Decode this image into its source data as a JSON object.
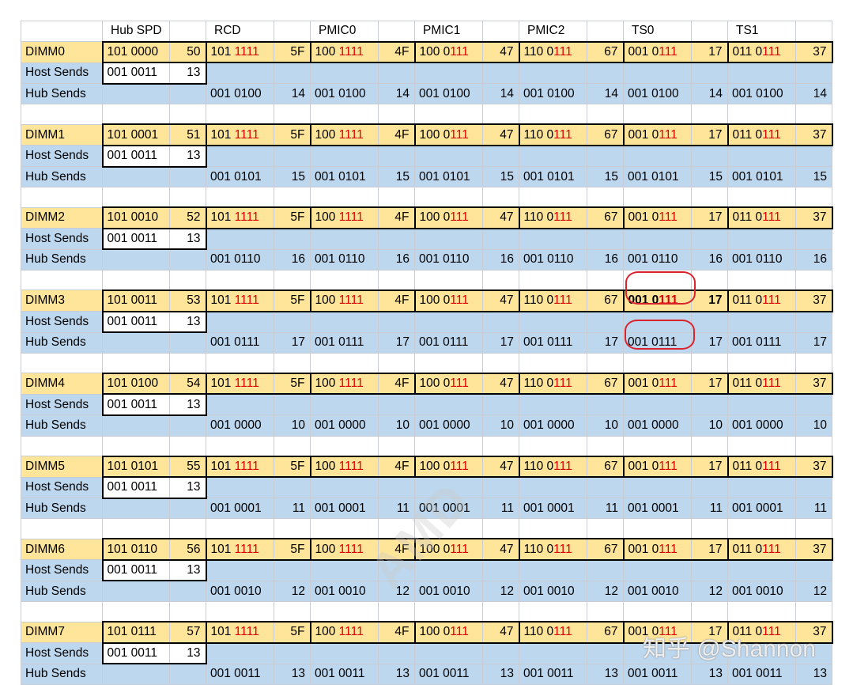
{
  "header": [
    "",
    "Hub SPD",
    "",
    "RCD",
    "",
    "PMIC0",
    "",
    "PMIC1",
    "",
    "PMIC2",
    "",
    "TS0",
    "",
    "TS1",
    ""
  ],
  "blocks": [
    {
      "dimm": [
        "DIMM0",
        "101 0000",
        "50",
        [
          "101 ",
          "1111"
        ],
        "5F",
        [
          "100 ",
          "1111"
        ],
        "4F",
        [
          "100 0",
          "111"
        ],
        "47",
        [
          "110 0",
          "111"
        ],
        "67",
        [
          "001 0",
          "111"
        ],
        "17",
        [
          "011 0",
          "111"
        ],
        "37"
      ],
      "host": [
        "Host Sends",
        "001 0011",
        "13"
      ],
      "hub": [
        "Hub Sends",
        "001 0100",
        "14",
        "001 0100",
        "14",
        "001 0100",
        "14",
        "001 0100",
        "14",
        "001 0100",
        "14",
        "001 0100",
        "14"
      ]
    },
    {
      "dimm": [
        "DIMM1",
        "101 0001",
        "51",
        [
          "101 ",
          "1111"
        ],
        "5F",
        [
          "100 ",
          "1111"
        ],
        "4F",
        [
          "100 0",
          "111"
        ],
        "47",
        [
          "110 0",
          "111"
        ],
        "67",
        [
          "001 0",
          "111"
        ],
        "17",
        [
          "011 0",
          "111"
        ],
        "37"
      ],
      "host": [
        "Host Sends",
        "001 0011",
        "13"
      ],
      "hub": [
        "Hub Sends",
        "001 0101",
        "15",
        "001 0101",
        "15",
        "001 0101",
        "15",
        "001 0101",
        "15",
        "001 0101",
        "15",
        "001 0101",
        "15"
      ]
    },
    {
      "dimm": [
        "DIMM2",
        "101 0010",
        "52",
        [
          "101 ",
          "1111"
        ],
        "5F",
        [
          "100 ",
          "1111"
        ],
        "4F",
        [
          "100 0",
          "111"
        ],
        "47",
        [
          "110 0",
          "111"
        ],
        "67",
        [
          "001 0",
          "111"
        ],
        "17",
        [
          "011 0",
          "111"
        ],
        "37"
      ],
      "host": [
        "Host Sends",
        "001 0011",
        "13"
      ],
      "hub": [
        "Hub Sends",
        "001 0110",
        "16",
        "001 0110",
        "16",
        "001 0110",
        "16",
        "001 0110",
        "16",
        "001 0110",
        "16",
        "001 0110",
        "16"
      ]
    },
    {
      "dimm": [
        "DIMM3",
        "101 0011",
        "53",
        [
          "101 ",
          "1111"
        ],
        "5F",
        [
          "100 ",
          "1111"
        ],
        "4F",
        [
          "100 0",
          "111"
        ],
        "47",
        [
          "110 0",
          "111"
        ],
        "67",
        [
          "001 0",
          "111"
        ],
        "17",
        [
          "011 0",
          "111"
        ],
        "37"
      ],
      "host": [
        "Host Sends",
        "001 0011",
        "13"
      ],
      "hub": [
        "Hub Sends",
        "001 0111",
        "17",
        "001 0111",
        "17",
        "001 0111",
        "17",
        "001 0111",
        "17",
        "001 0111",
        "17",
        "001 0111",
        "17"
      ]
    },
    {
      "dimm": [
        "DIMM4",
        "101 0100",
        "54",
        [
          "101 ",
          "1111"
        ],
        "5F",
        [
          "100 ",
          "1111"
        ],
        "4F",
        [
          "100 0",
          "111"
        ],
        "47",
        [
          "110 0",
          "111"
        ],
        "67",
        [
          "001 0",
          "111"
        ],
        "17",
        [
          "011 0",
          "111"
        ],
        "37"
      ],
      "host": [
        "Host Sends",
        "001 0011",
        "13"
      ],
      "hub": [
        "Hub Sends",
        "001 0000",
        "10",
        "001 0000",
        "10",
        "001 0000",
        "10",
        "001 0000",
        "10",
        "001 0000",
        "10",
        "001 0000",
        "10"
      ]
    },
    {
      "dimm": [
        "DIMM5",
        "101 0101",
        "55",
        [
          "101 ",
          "1111"
        ],
        "5F",
        [
          "100 ",
          "1111"
        ],
        "4F",
        [
          "100 0",
          "111"
        ],
        "47",
        [
          "110 0",
          "111"
        ],
        "67",
        [
          "001 0",
          "111"
        ],
        "17",
        [
          "011 0",
          "111"
        ],
        "37"
      ],
      "host": [
        "Host Sends",
        "001 0011",
        "13"
      ],
      "hub": [
        "Hub Sends",
        "001 0001",
        "11",
        "001 0001",
        "11",
        "001 0001",
        "11",
        "001 0001",
        "11",
        "001 0001",
        "11",
        "001 0001",
        "11"
      ]
    },
    {
      "dimm": [
        "DIMM6",
        "101 0110",
        "56",
        [
          "101 ",
          "1111"
        ],
        "5F",
        [
          "100 ",
          "1111"
        ],
        "4F",
        [
          "100 0",
          "111"
        ],
        "47",
        [
          "110 0",
          "111"
        ],
        "67",
        [
          "001 0",
          "111"
        ],
        "17",
        [
          "011 0",
          "111"
        ],
        "37"
      ],
      "host": [
        "Host Sends",
        "001 0011",
        "13"
      ],
      "hub": [
        "Hub Sends",
        "001 0010",
        "12",
        "001 0010",
        "12",
        "001 0010",
        "12",
        "001 0010",
        "12",
        "001 0010",
        "12",
        "001 0010",
        "12"
      ]
    },
    {
      "dimm": [
        "DIMM7",
        "101 0111",
        "57",
        [
          "101 ",
          "1111"
        ],
        "5F",
        [
          "100 ",
          "1111"
        ],
        "4F",
        [
          "100 0",
          "111"
        ],
        "47",
        [
          "110 0",
          "111"
        ],
        "67",
        [
          "001 0",
          "111"
        ],
        "17",
        [
          "011 0",
          "111"
        ],
        "37"
      ],
      "host": [
        "Host Sends",
        "001 0011",
        "13"
      ],
      "hub": [
        "Hub Sends",
        "001 0011",
        "13",
        "001 0011",
        "13",
        "001 0011",
        "13",
        "001 0011",
        "13",
        "001 0011",
        "13",
        "001 0011",
        "13"
      ]
    }
  ],
  "highlight": {
    "dimm_index": 3,
    "note": "TS0 cells circled in red"
  },
  "watermarks": {
    "diagonal": "AMD",
    "corner": "知乎 @Shannon"
  },
  "colors": {
    "dimm_row": "#ffe599",
    "sends_row": "#bdd7ee",
    "red_bits": "#e00000",
    "circle": "#d9232d"
  }
}
